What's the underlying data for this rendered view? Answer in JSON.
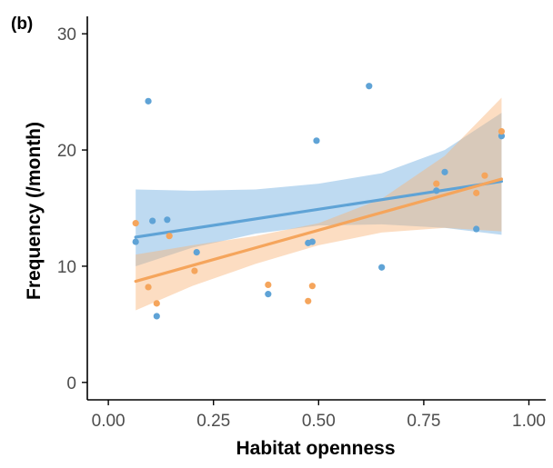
{
  "panel_label": "(b)",
  "chart_data": {
    "type": "scatter",
    "xlabel": "Habitat openness",
    "ylabel": "Frequency (/month)",
    "xlim": [
      -0.05,
      1.04
    ],
    "ylim": [
      -1.5,
      31.5
    ],
    "x_ticks": [
      0.0,
      0.25,
      0.5,
      0.75,
      1.0
    ],
    "x_tick_labels": [
      "0.00",
      "0.25",
      "0.50",
      "0.75",
      "1.00"
    ],
    "y_ticks": [
      0,
      10,
      20,
      30
    ],
    "y_tick_labels": [
      "0",
      "10",
      "20",
      "30"
    ],
    "grid": false,
    "legend": "none",
    "series": [
      {
        "color": "#5fa3d6",
        "band_color": "#6faee0",
        "points": [
          {
            "x": 0.065,
            "y": 12.1
          },
          {
            "x": 0.095,
            "y": 24.2
          },
          {
            "x": 0.105,
            "y": 13.9
          },
          {
            "x": 0.115,
            "y": 5.7
          },
          {
            "x": 0.14,
            "y": 14.0
          },
          {
            "x": 0.21,
            "y": 11.2
          },
          {
            "x": 0.38,
            "y": 7.6
          },
          {
            "x": 0.475,
            "y": 12.0
          },
          {
            "x": 0.485,
            "y": 12.1
          },
          {
            "x": 0.495,
            "y": 20.8
          },
          {
            "x": 0.62,
            "y": 25.5
          },
          {
            "x": 0.65,
            "y": 9.9
          },
          {
            "x": 0.78,
            "y": 16.5
          },
          {
            "x": 0.8,
            "y": 18.1
          },
          {
            "x": 0.875,
            "y": 13.2
          },
          {
            "x": 0.935,
            "y": 21.2
          }
        ],
        "fit": {
          "x0": 0.065,
          "y0": 12.5,
          "x1": 0.935,
          "y1": 17.3
        },
        "band": [
          {
            "x": 0.065,
            "lo": 10.0,
            "hi": 16.6
          },
          {
            "x": 0.2,
            "lo": 11.6,
            "hi": 16.5
          },
          {
            "x": 0.35,
            "lo": 12.8,
            "hi": 16.6
          },
          {
            "x": 0.5,
            "lo": 13.5,
            "hi": 17.1
          },
          {
            "x": 0.65,
            "lo": 13.6,
            "hi": 18.0
          },
          {
            "x": 0.8,
            "lo": 13.3,
            "hi": 20.0
          },
          {
            "x": 0.935,
            "lo": 12.7,
            "hi": 23.2
          }
        ]
      },
      {
        "color": "#f5a55c",
        "band_color": "#f8b478",
        "points": [
          {
            "x": 0.065,
            "y": 13.7
          },
          {
            "x": 0.095,
            "y": 8.2
          },
          {
            "x": 0.115,
            "y": 6.8
          },
          {
            "x": 0.145,
            "y": 12.6
          },
          {
            "x": 0.205,
            "y": 9.6
          },
          {
            "x": 0.38,
            "y": 8.4
          },
          {
            "x": 0.475,
            "y": 7.0
          },
          {
            "x": 0.485,
            "y": 8.3
          },
          {
            "x": 0.78,
            "y": 17.1
          },
          {
            "x": 0.875,
            "y": 16.3
          },
          {
            "x": 0.895,
            "y": 17.8
          },
          {
            "x": 0.935,
            "y": 21.6
          }
        ],
        "fit": {
          "x0": 0.065,
          "y0": 8.7,
          "x1": 0.935,
          "y1": 17.5
        },
        "band": [
          {
            "x": 0.065,
            "lo": 6.2,
            "hi": 11.0
          },
          {
            "x": 0.2,
            "lo": 8.3,
            "hi": 11.8
          },
          {
            "x": 0.35,
            "lo": 10.2,
            "hi": 12.6
          },
          {
            "x": 0.5,
            "lo": 11.8,
            "hi": 13.7
          },
          {
            "x": 0.65,
            "lo": 12.9,
            "hi": 15.8
          },
          {
            "x": 0.8,
            "lo": 13.3,
            "hi": 19.5
          },
          {
            "x": 0.935,
            "lo": 13.0,
            "hi": 24.5
          }
        ]
      }
    ]
  }
}
